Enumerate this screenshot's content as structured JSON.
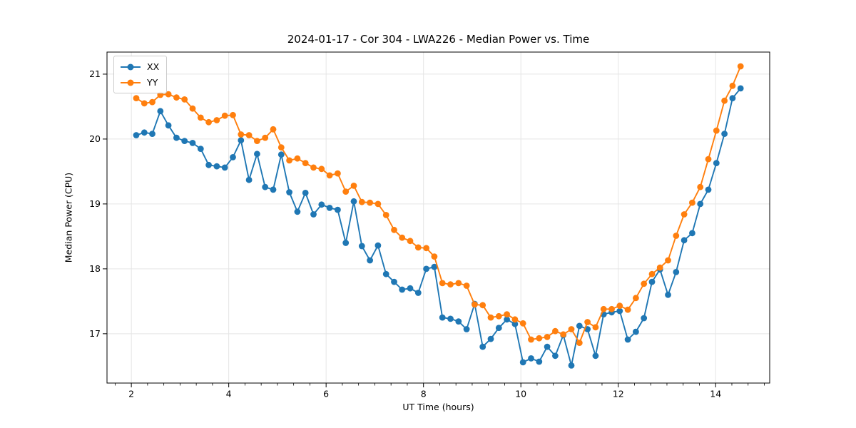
{
  "figure": {
    "title": "2024-01-17 - Cor 304 - LWA226 - Median Power vs. Time"
  },
  "chart_data": {
    "type": "line",
    "title": "2024-01-17 - Cor 304 - LWA226 - Median Power vs. Time",
    "xlabel": "UT Time (hours)",
    "ylabel": "Median Power (CPU)",
    "xlim": [
      1.5,
      15.11
    ],
    "ylim": [
      16.24,
      21.34
    ],
    "x_ticks": [
      2,
      4,
      6,
      8,
      10,
      12,
      14
    ],
    "y_ticks": [
      17,
      18,
      19,
      20,
      21
    ],
    "x_minor_step": 0.33333,
    "grid": true,
    "grid_color": "#e5e5e5",
    "legend_position": "upper-left",
    "marker": "circle",
    "x_start": 2.1,
    "x_step": 0.1655,
    "series": [
      {
        "name": "XX",
        "color": "#1f77b4",
        "values": [
          20.06,
          20.1,
          20.08,
          20.43,
          20.21,
          20.02,
          19.97,
          19.94,
          19.85,
          19.6,
          19.58,
          19.56,
          19.72,
          19.98,
          19.37,
          19.77,
          19.26,
          19.22,
          19.76,
          19.18,
          18.88,
          19.17,
          18.84,
          18.99,
          18.94,
          18.91,
          18.4,
          19.04,
          18.35,
          18.13,
          18.36,
          17.92,
          17.8,
          17.68,
          17.7,
          17.63,
          18.0,
          18.03,
          17.25,
          17.23,
          17.19,
          17.07,
          17.46,
          16.8,
          16.92,
          17.09,
          17.22,
          17.15,
          16.56,
          16.62,
          16.57,
          16.8,
          16.66,
          16.98,
          16.51,
          17.12,
          17.07,
          16.66,
          17.3,
          17.33,
          17.35,
          16.91,
          17.03,
          17.24,
          17.8,
          17.99,
          17.6,
          17.95,
          18.44,
          18.55,
          19.0,
          19.22,
          19.63,
          20.08,
          20.63,
          20.78
        ]
      },
      {
        "name": "YY",
        "color": "#ff7f0e",
        "values": [
          20.63,
          20.55,
          20.57,
          20.68,
          20.69,
          20.64,
          20.61,
          20.47,
          20.33,
          20.26,
          20.29,
          20.36,
          20.37,
          20.07,
          20.06,
          19.97,
          20.02,
          20.15,
          19.87,
          19.67,
          19.7,
          19.63,
          19.56,
          19.54,
          19.44,
          19.47,
          19.19,
          19.28,
          19.03,
          19.02,
          19.0,
          18.83,
          18.6,
          18.48,
          18.43,
          18.33,
          18.32,
          18.19,
          17.78,
          17.76,
          17.78,
          17.74,
          17.45,
          17.44,
          17.25,
          17.27,
          17.3,
          17.22,
          17.16,
          16.91,
          16.93,
          16.95,
          17.04,
          16.99,
          17.07,
          16.86,
          17.18,
          17.1,
          17.38,
          17.38,
          17.43,
          17.37,
          17.55,
          17.77,
          17.92,
          18.02,
          18.13,
          18.51,
          18.84,
          19.02,
          19.26,
          19.69,
          20.13,
          20.59,
          20.82,
          21.12
        ]
      }
    ]
  }
}
